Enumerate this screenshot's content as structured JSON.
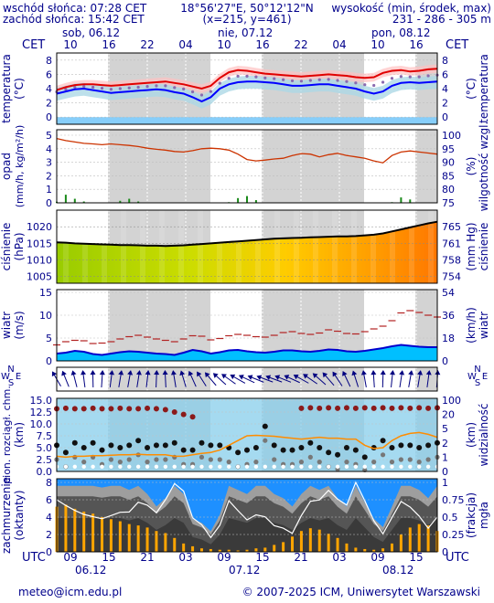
{
  "header": {
    "sunrise": "wschód słońca: 07:28 CET",
    "sunset": "zachód słońca: 15:42 CET",
    "coords": "18°56'27\"E, 50°12'12\"N",
    "grid": "(x=215,  y=461)",
    "alt_label": "wysokość (min, środek, max)",
    "alt_values": "231 - 286 - 305 m"
  },
  "timeline": {
    "tz_label": "CET",
    "days_top": [
      "sob, 06.12",
      "nie, 07.12",
      "pon, 08.12"
    ],
    "ticks_top": [
      "10",
      "16",
      "22",
      "04",
      "10",
      "16",
      "22",
      "04",
      "10",
      "16"
    ],
    "utc_label": "UTC",
    "ticks_bottom": [
      "09",
      "15",
      "21",
      "03",
      "09",
      "15",
      "21",
      "03",
      "09",
      "15"
    ],
    "days_bottom": [
      "06.12",
      "07.12",
      "08.12"
    ]
  },
  "footer": {
    "contact": "meteo@icm.edu.pl",
    "copyright": "© 2007-2025 ICM, Uniwersytet Warszawski"
  },
  "colors": {
    "label": "#00008b",
    "night": "#d3d3d3",
    "temp_line": "#e00000",
    "dew_line": "#0000ff",
    "pressure_line": "#000000",
    "humidity_line": "#cc3300"
  },
  "chart_data": [
    {
      "type": "line",
      "name": "temperature",
      "left_label": "temperatura",
      "left_unit": "(°C)",
      "right_label": "temperatura",
      "right_unit": "(°C)",
      "yticks": [
        "8",
        "6",
        "4",
        "2",
        "0"
      ],
      "ylim": [
        -1,
        9
      ],
      "series": [
        {
          "values": [
            3.8,
            4.2,
            4.5,
            4.6,
            4.6,
            4.5,
            4.4,
            4.5,
            4.6,
            4.7,
            4.8,
            4.9,
            5.0,
            4.8,
            4.6,
            4.3,
            4.0,
            4.4,
            5.5,
            6.3,
            6.6,
            6.5,
            6.3,
            6.1,
            6.0,
            5.9,
            5.8,
            5.7,
            5.8,
            5.9,
            6.0,
            5.9,
            5.8,
            5.6,
            5.5,
            5.6,
            6.2,
            6.5,
            6.6,
            6.4,
            6.5,
            6.7,
            6.8
          ]
        },
        {
          "values": [
            3.3,
            3.6,
            3.9,
            4.0,
            3.8,
            3.6,
            3.4,
            3.5,
            3.6,
            3.7,
            3.8,
            3.9,
            3.8,
            3.5,
            3.3,
            2.8,
            2.2,
            2.8,
            4.0,
            4.6,
            4.9,
            5.0,
            5.0,
            4.9,
            4.8,
            4.6,
            4.4,
            4.4,
            4.5,
            4.6,
            4.6,
            4.4,
            4.2,
            4.0,
            3.6,
            3.3,
            3.6,
            4.4,
            4.8,
            4.9,
            4.8,
            4.9,
            5.0
          ]
        }
      ]
    },
    {
      "type": "line",
      "name": "precipitation",
      "left_label": "opad",
      "left_unit": "(mm/h, kg/m²/h)",
      "right_label": "wilgotność wzgl.",
      "right_unit": "(%)",
      "yticks_left": [
        "5",
        "4",
        "3",
        "2",
        "1",
        "0"
      ],
      "yticks_right": [
        "100",
        "95",
        "90",
        "85",
        "80",
        "75"
      ],
      "ylim": [
        0,
        5
      ],
      "ylim_right": [
        75,
        100
      ],
      "series": [
        {
          "values": [
            98.8,
            98.0,
            97.5,
            97.0,
            96.8,
            96.5,
            96.8,
            96.5,
            96.2,
            95.8,
            95.2,
            94.8,
            94.5,
            94.0,
            93.8,
            94.3,
            95.0,
            95.2,
            95.0,
            94.5,
            93.0,
            91.0,
            90.5,
            90.8,
            91.2,
            91.5,
            92.5,
            93.2,
            93.0,
            92.0,
            92.8,
            93.3,
            92.5,
            92.0,
            91.5,
            90.5,
            89.8,
            92.5,
            93.8,
            94.2,
            93.8,
            93.4,
            93.0
          ]
        },
        {
          "values": [
            0.08,
            0.6,
            0.3,
            0.1,
            0,
            0,
            0,
            0.15,
            0.3,
            0.1,
            0,
            0,
            0,
            0,
            0,
            0,
            0,
            0,
            0,
            0.05,
            0.35,
            0.5,
            0.2,
            0,
            0,
            0,
            0,
            0,
            0,
            0,
            0,
            0,
            0,
            0,
            0,
            0,
            0,
            0.05,
            0.4,
            0.25,
            0,
            0,
            0
          ]
        }
      ]
    },
    {
      "type": "area",
      "name": "pressure",
      "left_label": "ciśnienie",
      "left_unit": "(hPa)",
      "right_label": "ciśnienie",
      "right_unit": "(mm Hg)",
      "yticks_left": [
        "1020",
        "1015",
        "1010",
        "1005"
      ],
      "yticks_right": [
        "765",
        "761",
        "758",
        "754"
      ],
      "ylim": [
        1003,
        1025
      ],
      "series": [
        {
          "values": [
            1015.3,
            1015.2,
            1015.0,
            1014.9,
            1014.8,
            1014.7,
            1014.6,
            1014.5,
            1014.5,
            1014.4,
            1014.3,
            1014.3,
            1014.2,
            1014.3,
            1014.4,
            1014.6,
            1014.8,
            1015.0,
            1015.2,
            1015.4,
            1015.6,
            1015.8,
            1016.0,
            1016.2,
            1016.4,
            1016.5,
            1016.6,
            1016.7,
            1016.8,
            1016.9,
            1017.0,
            1017.1,
            1017.1,
            1017.2,
            1017.4,
            1017.6,
            1018.0,
            1018.6,
            1019.2,
            1019.8,
            1020.4,
            1021.0,
            1021.5
          ]
        }
      ]
    },
    {
      "type": "area",
      "name": "wind",
      "left_label": "wiatr",
      "left_unit": "(m/s)",
      "right_label": "wiatr",
      "right_unit": "(km/h)",
      "yticks_left": [
        "15",
        "10",
        "5",
        "0"
      ],
      "yticks_right": [
        "54",
        "36",
        "18",
        "0"
      ],
      "ylim": [
        0,
        15
      ],
      "series": [
        {
          "values": [
            1.6,
            1.8,
            2.2,
            2.0,
            1.5,
            1.3,
            1.6,
            1.9,
            2.1,
            2.0,
            1.8,
            1.6,
            1.5,
            1.3,
            1.8,
            2.4,
            2.1,
            1.6,
            1.9,
            2.3,
            2.4,
            2.1,
            1.9,
            1.8,
            2.0,
            2.3,
            2.3,
            2.1,
            2.0,
            2.2,
            2.5,
            2.4,
            2.1,
            2.0,
            2.2,
            2.5,
            2.8,
            3.2,
            3.5,
            3.3,
            3.1,
            3.0,
            3.0
          ]
        },
        {
          "values": [
            3.5,
            4.2,
            4.5,
            4.4,
            3.8,
            3.9,
            4.2,
            4.8,
            5.3,
            5.6,
            5.2,
            4.8,
            4.5,
            4.2,
            4.8,
            5.5,
            5.4,
            4.6,
            4.9,
            5.5,
            5.8,
            5.6,
            5.3,
            5.2,
            5.6,
            6.2,
            6.4,
            6.0,
            5.8,
            6.1,
            6.8,
            6.5,
            6.0,
            5.9,
            6.4,
            7.0,
            7.6,
            8.8,
            10.5,
            11.0,
            10.6,
            10.0,
            9.6
          ]
        }
      ]
    },
    {
      "type": "table",
      "name": "wind-direction",
      "compass": [
        "N",
        "W",
        "E",
        "S"
      ]
    },
    {
      "type": "scatter",
      "name": "cloud-base-visibility",
      "left_label": "pion. rozciągł. chm.",
      "left_unit": "(km)",
      "right_label": "widzialność",
      "right_unit": "(km)",
      "yticks_left": [
        "15.0",
        "12.5",
        "10.0",
        "7.5",
        "5.0",
        "2.5",
        "0.0"
      ],
      "yticks_right": [
        "100",
        "20",
        "5",
        "2",
        "1",
        "0"
      ],
      "ylim": [
        0,
        15
      ],
      "series": [
        {
          "values": [
            13.2,
            13.3,
            13.2,
            13.2,
            13.3,
            13.2,
            13.2,
            13.3,
            13.2,
            13.2,
            13.3,
            13.2,
            13.0,
            12.5,
            12.0,
            11.5,
            null,
            null,
            null,
            null,
            null,
            null,
            null,
            null,
            null,
            null,
            null,
            13.3,
            13.4,
            13.3,
            13.4,
            13.3,
            13.4,
            13.3,
            13.4,
            13.3,
            13.4,
            13.3,
            13.4,
            13.3,
            13.4,
            13.3,
            13.4
          ]
        },
        {
          "values": [
            5.5,
            4.0,
            6.0,
            5.0,
            6.0,
            4.5,
            5.5,
            5.0,
            5.5,
            6.5,
            5.0,
            5.5,
            5.5,
            6.0,
            4.5,
            4.5,
            6.0,
            5.5,
            5.5,
            5.0,
            4.0,
            4.5,
            5.0,
            9.5,
            5.5,
            4.5,
            4.5,
            5.0,
            6.0,
            5.0,
            4.0,
            3.5,
            5.0,
            4.5,
            3.0,
            5.0,
            6.5,
            5.0,
            5.5,
            5.5,
            5.0,
            5.5,
            6.0
          ]
        },
        {
          "values": [
            3.2,
            3.0,
            3.2,
            3.2,
            3.3,
            3.3,
            3.4,
            3.5,
            3.5,
            3.6,
            3.5,
            3.5,
            3.5,
            3.2,
            3.2,
            3.5,
            3.8,
            4.0,
            4.5,
            5.5,
            6.5,
            7.5,
            7.6,
            7.5,
            7.4,
            7.2,
            7.0,
            6.8,
            7.0,
            7.2,
            7.0,
            7.0,
            6.8,
            6.8,
            5.5,
            4.8,
            5.0,
            6.5,
            7.5,
            8.0,
            8.2,
            7.8,
            7.2
          ]
        }
      ]
    },
    {
      "type": "area",
      "name": "cloud-cover",
      "left_label": "zachmurzenie",
      "left_unit": "(oktanty)",
      "right_label": "mgła",
      "right_unit": "(frakcja)",
      "yticks_left": [
        "8",
        "6",
        "4",
        "2",
        "0"
      ],
      "yticks_right": [
        "1",
        "0.75",
        "0.5",
        "0.25",
        "0"
      ],
      "ylim": [
        0,
        8
      ],
      "ylim_right": [
        0,
        1
      ],
      "series": [
        {
          "values": [
            8,
            8,
            8,
            8,
            8,
            7.8,
            8,
            8,
            7.5,
            8,
            7,
            5.5,
            6.5,
            8,
            7,
            4,
            3.5,
            2.5,
            4.5,
            8,
            7.5,
            7,
            8,
            8,
            7,
            6.5,
            5.5,
            7,
            8,
            7.5,
            8,
            6.5,
            5.5,
            8,
            6,
            4,
            3,
            5.5,
            8,
            8,
            7.5,
            6.5,
            8
          ]
        },
        {
          "values": [
            0.65,
            0.68,
            0.62,
            0.58,
            0.55,
            0.5,
            0.47,
            0.44,
            0.4,
            0.38,
            0.35,
            0.3,
            0.27,
            0.2,
            0.12,
            0.08,
            0.05,
            0.04,
            0.03,
            0.03,
            0.02,
            0.03,
            0.05,
            0.06,
            0.1,
            0.14,
            0.22,
            0.3,
            0.34,
            0.32,
            0.26,
            0.2,
            0.12,
            0.06,
            0.04,
            0.03,
            0.05,
            0.12,
            0.25,
            0.35,
            0.4,
            0.38,
            0.3
          ]
        }
      ]
    }
  ]
}
